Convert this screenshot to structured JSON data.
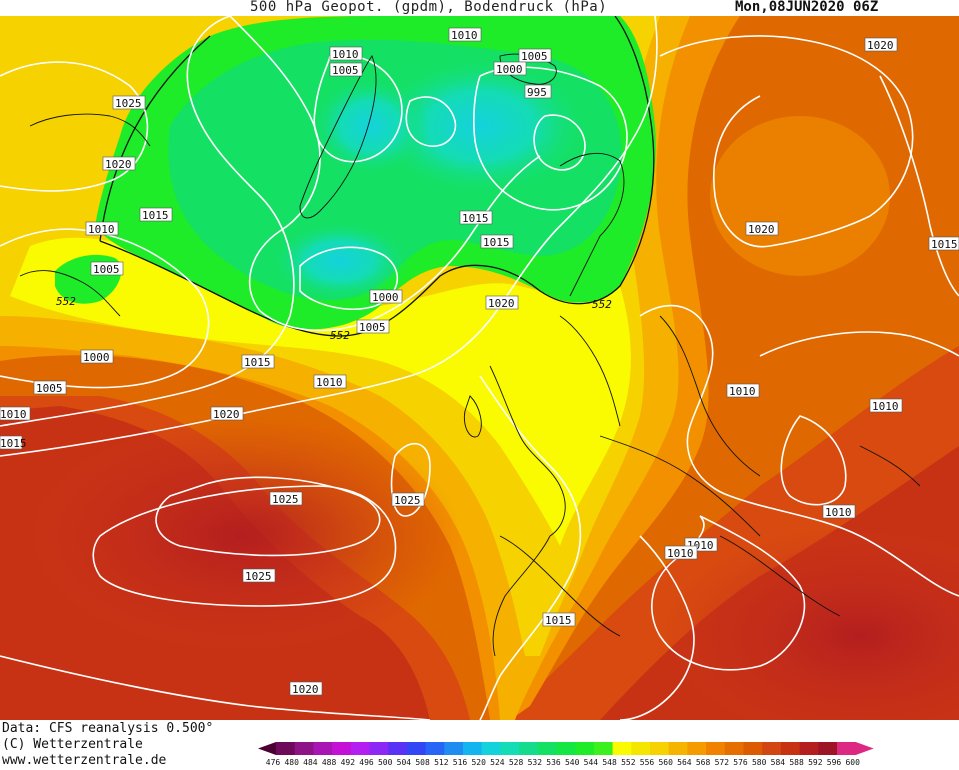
{
  "header": {
    "title": "500 hPa Geopot. (gpdm), Bodendruck (hPa)",
    "datetime": "Mon,08JUN2020 06Z"
  },
  "footer": {
    "data_source": "Data: CFS reanalysis 0.500°",
    "copyright": "(C) Wetterzentrale",
    "url": "www.wetterzentrale.de"
  },
  "colorbar": {
    "ticks": [
      "476",
      "480",
      "484",
      "488",
      "492",
      "496",
      "500",
      "504",
      "508",
      "512",
      "516",
      "520",
      "524",
      "528",
      "532",
      "536",
      "540",
      "544",
      "548",
      "552",
      "556",
      "560",
      "564",
      "568",
      "572",
      "576",
      "580",
      "584",
      "588",
      "592",
      "596",
      "600"
    ],
    "colors": [
      "#4b0032",
      "#6e0a5a",
      "#8c1487",
      "#a914b4",
      "#c40fd7",
      "#b41ef0",
      "#8c28f5",
      "#5a32f5",
      "#3246f5",
      "#2864f5",
      "#1e8cf0",
      "#14b4f0",
      "#14d2dc",
      "#14dcb4",
      "#14dc8c",
      "#14e064",
      "#14e646",
      "#1eec28",
      "#3cf01e",
      "#fafa00",
      "#f5e600",
      "#f5d200",
      "#f5b400",
      "#f59b00",
      "#f08200",
      "#e66e00",
      "#dc5a00",
      "#d24614",
      "#c83214",
      "#b41e1e",
      "#9c1426",
      "#dc2882"
    ]
  },
  "map": {
    "colors": {
      "outer_red": "#c8321e",
      "dark_orange": "#dc5000",
      "orange": "#e66e00",
      "light_orange": "#f59600",
      "amber": "#f5b400",
      "yellow_orange": "#f5d200",
      "yellow": "#fafa00",
      "green": "#1eec28",
      "green_light": "#14e064",
      "teal": "#14dcb4",
      "cyan": "#14d2dc"
    },
    "isobar_labels": [
      "1010",
      "1005",
      "1005",
      "1000",
      "995",
      "1025",
      "1020",
      "1015",
      "1010",
      "1005",
      "552",
      "1000",
      "1005",
      "1015",
      "1010",
      "1015",
      "1020",
      "1015",
      "1010",
      "1020",
      "1015",
      "1020",
      "552",
      "1000",
      "1005",
      "552",
      "1020",
      "1025",
      "1025",
      "1010",
      "1010",
      "1010",
      "1015",
      "1020",
      "1010",
      "1010",
      "1010"
    ],
    "geopotential_label": "552"
  }
}
